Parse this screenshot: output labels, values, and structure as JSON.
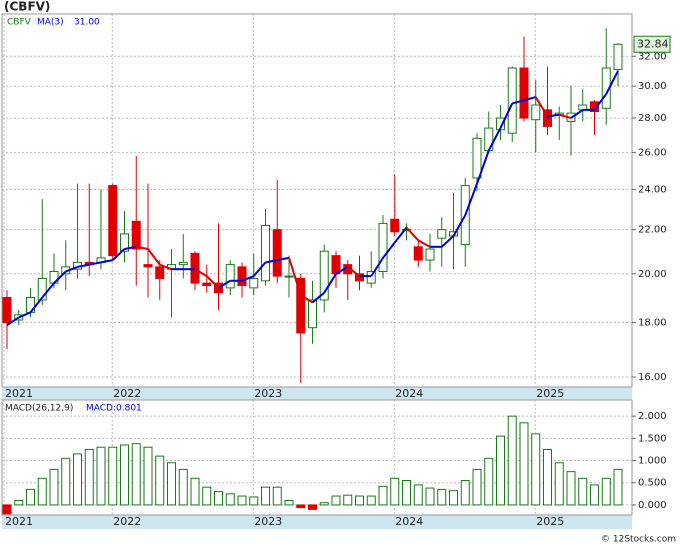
{
  "chart_data": {
    "type": "candlestick",
    "title": "(CBFV)",
    "ticker_label": "CBFV",
    "ma_label": "MA(3)",
    "ma_value": "31.00",
    "last_price": "32.84",
    "categories": [
      "2021",
      null,
      null,
      null,
      null,
      null,
      null,
      null,
      null,
      "2022",
      null,
      null,
      null,
      null,
      null,
      null,
      null,
      null,
      null,
      null,
      null,
      "2023",
      null,
      null,
      null,
      null,
      null,
      null,
      null,
      null,
      null,
      null,
      null,
      "2024",
      null,
      null,
      null,
      null,
      null,
      null,
      null,
      null,
      null,
      null,
      null,
      "2025",
      null,
      null,
      null,
      null,
      null,
      null,
      null
    ],
    "open": [
      19.0,
      18.1,
      18.4,
      18.9,
      19.6,
      20.0,
      20.2,
      20.5,
      20.5,
      24.2,
      21.0,
      22.4,
      20.4,
      20.3,
      20.2,
      20.4,
      20.9,
      19.6,
      19.6,
      19.4,
      20.3,
      19.4,
      19.7,
      22.0,
      19.9,
      19.8,
      17.8,
      18.9,
      20.8,
      20.4,
      20.0,
      19.6,
      20.1,
      22.5,
      22.0,
      21.2,
      20.6,
      21.6,
      21.7,
      21.3,
      24.6,
      26.1,
      27.3,
      27.1,
      31.2,
      27.9,
      28.5,
      28.2,
      27.8,
      28.5,
      29.0,
      28.6,
      31.1
    ],
    "high": [
      19.3,
      18.5,
      19.4,
      23.5,
      20.9,
      21.5,
      24.3,
      24.3,
      24.0,
      24.3,
      22.9,
      25.8,
      24.3,
      20.6,
      21.1,
      21.8,
      21.0,
      20.4,
      22.3,
      20.6,
      20.5,
      20.9,
      23.0,
      24.5,
      20.8,
      20.0,
      19.7,
      21.3,
      21.0,
      20.6,
      20.8,
      21.0,
      22.7,
      24.8,
      22.3,
      21.5,
      21.8,
      22.6,
      23.8,
      24.6,
      27.1,
      28.4,
      28.8,
      31.3,
      33.4,
      30.4,
      31.3,
      28.7,
      30.0,
      29.8,
      29.1,
      34.0,
      32.9
    ],
    "low": [
      17.0,
      17.9,
      18.2,
      18.7,
      19.4,
      19.3,
      19.8,
      19.9,
      20.2,
      20.6,
      20.5,
      19.5,
      19.0,
      18.9,
      18.2,
      19.8,
      19.3,
      19.2,
      18.5,
      19.1,
      19.0,
      19.1,
      19.5,
      19.6,
      19.0,
      15.8,
      17.2,
      18.4,
      19.4,
      18.9,
      19.3,
      19.4,
      19.8,
      21.7,
      21.5,
      20.3,
      20.1,
      20.3,
      20.2,
      20.3,
      23.9,
      26.0,
      26.7,
      26.6,
      27.8,
      26.0,
      27.0,
      26.7,
      25.8,
      27.8,
      27.0,
      27.6,
      30.0
    ],
    "close": [
      18.0,
      18.3,
      19.0,
      19.8,
      20.1,
      20.3,
      20.5,
      20.4,
      20.7,
      20.8,
      21.8,
      21.1,
      20.3,
      19.8,
      20.4,
      20.5,
      19.6,
      19.5,
      19.2,
      20.4,
      19.5,
      19.8,
      22.2,
      19.9,
      19.9,
      17.6,
      18.9,
      21.0,
      20.0,
      20.0,
      19.7,
      20.1,
      22.3,
      21.9,
      22.0,
      20.6,
      21.1,
      22.0,
      21.9,
      24.2,
      26.8,
      27.4,
      28.0,
      31.2,
      28.0,
      28.8,
      27.5,
      28.3,
      28.3,
      28.8,
      28.4,
      31.2,
      32.84
    ],
    "ma": [
      17.9,
      18.2,
      18.4,
      19.0,
      19.6,
      20.1,
      20.3,
      20.4,
      20.5,
      20.6,
      21.1,
      21.2,
      21.1,
      20.4,
      20.2,
      20.2,
      20.2,
      19.9,
      19.4,
      19.7,
      19.7,
      19.9,
      20.5,
      20.6,
      20.7,
      19.1,
      18.8,
      19.2,
      20.0,
      20.3,
      19.9,
      19.9,
      20.7,
      21.4,
      22.1,
      21.5,
      21.2,
      21.2,
      21.7,
      22.7,
      24.3,
      26.1,
      27.4,
      28.9,
      29.1,
      29.3,
      28.1,
      28.2,
      28.0,
      28.5,
      28.5,
      29.5,
      31.0
    ],
    "up_color": "#1a7a1a",
    "down_color": "#e00000",
    "ma_up_color": "#0000dd",
    "ma_down_color": "#e00000",
    "log_scale": true,
    "ylim": [
      15.66,
      35.06
    ],
    "yticks": [
      {
        "value": 16,
        "label": "16.00"
      },
      {
        "value": 18,
        "label": "18.00"
      },
      {
        "value": 20,
        "label": "20.00"
      },
      {
        "value": 22,
        "label": "22.00"
      },
      {
        "value": 24,
        "label": "24.00"
      },
      {
        "value": 26,
        "label": "26.00"
      },
      {
        "value": 28,
        "label": "28.00"
      },
      {
        "value": 30,
        "label": "30.00"
      },
      {
        "value": 32,
        "label": "32.00"
      }
    ],
    "grid": true,
    "macd": {
      "label": "MACD(26,12,9)",
      "value_label": "MACD:0.801",
      "values": [
        -0.2,
        0.1,
        0.35,
        0.6,
        0.8,
        1.05,
        1.15,
        1.25,
        1.3,
        1.3,
        1.35,
        1.38,
        1.3,
        1.1,
        0.95,
        0.8,
        0.6,
        0.4,
        0.3,
        0.25,
        0.2,
        0.18,
        0.4,
        0.4,
        0.1,
        -0.06,
        -0.1,
        0.05,
        0.2,
        0.22,
        0.2,
        0.2,
        0.42,
        0.6,
        0.55,
        0.45,
        0.38,
        0.35,
        0.32,
        0.55,
        0.8,
        1.05,
        1.55,
        2.0,
        1.85,
        1.6,
        1.25,
        0.95,
        0.75,
        0.6,
        0.45,
        0.6,
        0.801
      ],
      "ylim": [
        -0.227,
        2.364
      ],
      "yticks": [
        {
          "value": 0,
          "label": "0.000"
        },
        {
          "value": 0.5,
          "label": "0.500"
        },
        {
          "value": 1,
          "label": "1.000"
        },
        {
          "value": 1.5,
          "label": "1.500"
        },
        {
          "value": 2,
          "label": "2.000"
        }
      ]
    },
    "copyright": "© 12Stocks.com"
  }
}
